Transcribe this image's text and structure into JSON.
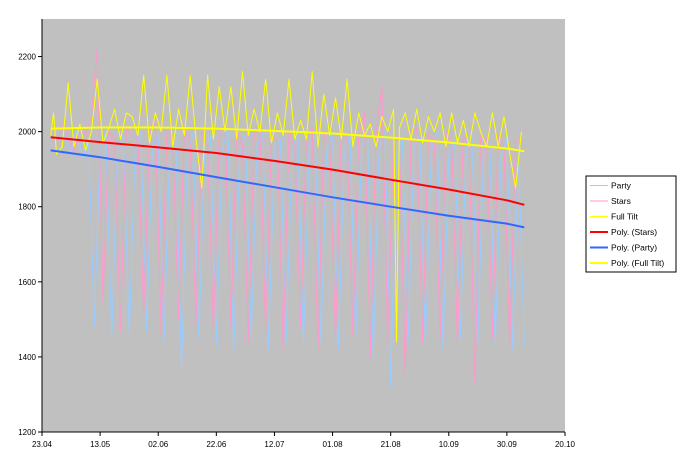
{
  "chart_data": {
    "type": "line",
    "title": "",
    "xlabel": "",
    "ylabel": "",
    "ylim": [
      1200,
      2300
    ],
    "yticks": [
      1200,
      1400,
      1600,
      1800,
      2000,
      2200
    ],
    "xlim": [
      "2006-04-23",
      "2006-10-20"
    ],
    "xtick_labels": [
      "23.04",
      "13.05",
      "02.06",
      "22.06",
      "12.07",
      "01.08",
      "21.08",
      "10.09",
      "30.09",
      "20.10"
    ],
    "plot_background": "#c0c0c0",
    "grid": false,
    "legend_position": "right",
    "series": [
      {
        "name": "Party",
        "color": "#99ccff",
        "width": 1,
        "dates": [
          "2006-04-29",
          "2006-05-01",
          "2006-05-03",
          "2006-05-05",
          "2006-05-07",
          "2006-05-09",
          "2006-05-11",
          "2006-05-13",
          "2006-05-15",
          "2006-05-17",
          "2006-05-19",
          "2006-05-21",
          "2006-05-23",
          "2006-05-25",
          "2006-05-27",
          "2006-05-29",
          "2006-05-31",
          "2006-06-02",
          "2006-06-04",
          "2006-06-06",
          "2006-06-08",
          "2006-06-10",
          "2006-06-12",
          "2006-06-14",
          "2006-06-16",
          "2006-06-18",
          "2006-06-20",
          "2006-06-22",
          "2006-06-24",
          "2006-06-26",
          "2006-06-28",
          "2006-06-30",
          "2006-07-02",
          "2006-07-04",
          "2006-07-06",
          "2006-07-08",
          "2006-07-10",
          "2006-07-12",
          "2006-07-14",
          "2006-07-16",
          "2006-07-18",
          "2006-07-20",
          "2006-07-22",
          "2006-07-24",
          "2006-07-26",
          "2006-07-28",
          "2006-07-30",
          "2006-08-01",
          "2006-08-03",
          "2006-08-05",
          "2006-08-07",
          "2006-08-09",
          "2006-08-11",
          "2006-08-13",
          "2006-08-15",
          "2006-08-17",
          "2006-08-19",
          "2006-08-21",
          "2006-08-23",
          "2006-08-25",
          "2006-08-27",
          "2006-08-29",
          "2006-08-31",
          "2006-09-02",
          "2006-09-04",
          "2006-09-06",
          "2006-09-08",
          "2006-09-10",
          "2006-09-12",
          "2006-09-14",
          "2006-09-16",
          "2006-09-18",
          "2006-09-20",
          "2006-09-22",
          "2006-09-24",
          "2006-09-26",
          "2006-09-28",
          "2006-09-30",
          "2006-10-02",
          "2006-10-04",
          "2006-10-06"
        ],
        "values": [
          1950,
          1990,
          1940,
          2010,
          1930,
          1980,
          1480,
          1960,
          2000,
          1450,
          1950,
          1990,
          1460,
          1940,
          2000,
          1470,
          1960,
          1990,
          1440,
          1950,
          2010,
          1360,
          1940,
          2000,
          1450,
          1960,
          1990,
          1430,
          1950,
          2010,
          1410,
          1940,
          1990,
          1450,
          1960,
          2000,
          1420,
          1950,
          1980,
          1440,
          1940,
          2000,
          1430,
          1960,
          1990,
          1440,
          1950,
          2000,
          1420,
          1940,
          1990,
          1450,
          1960,
          2010,
          1400,
          1950,
          2000,
          1320,
          1940,
          1980,
          1440,
          1960,
          1990,
          1430,
          1950,
          2000,
          1420,
          1940,
          1980,
          1450,
          1960,
          1990,
          1440,
          1950,
          2000,
          1430,
          1940,
          1980,
          1420,
          1950,
          1430
        ]
      },
      {
        "name": "Stars",
        "color": "#ff99cc",
        "width": 1,
        "dates": [
          "2006-04-28",
          "2006-04-30",
          "2006-05-02",
          "2006-05-04",
          "2006-05-06",
          "2006-05-08",
          "2006-05-10",
          "2006-05-12",
          "2006-05-14",
          "2006-05-16",
          "2006-05-18",
          "2006-05-20",
          "2006-05-22",
          "2006-05-24",
          "2006-05-26",
          "2006-05-28",
          "2006-05-30",
          "2006-06-01",
          "2006-06-03",
          "2006-06-05",
          "2006-06-07",
          "2006-06-09",
          "2006-06-11",
          "2006-06-13",
          "2006-06-15",
          "2006-06-17",
          "2006-06-19",
          "2006-06-21",
          "2006-06-23",
          "2006-06-25",
          "2006-06-27",
          "2006-06-29",
          "2006-07-01",
          "2006-07-03",
          "2006-07-05",
          "2006-07-07",
          "2006-07-09",
          "2006-07-11",
          "2006-07-13",
          "2006-07-15",
          "2006-07-17",
          "2006-07-19",
          "2006-07-21",
          "2006-07-23",
          "2006-07-25",
          "2006-07-27",
          "2006-07-29",
          "2006-07-31",
          "2006-08-02",
          "2006-08-04",
          "2006-08-06",
          "2006-08-08",
          "2006-08-10",
          "2006-08-12",
          "2006-08-14",
          "2006-08-16",
          "2006-08-18",
          "2006-08-20",
          "2006-08-22",
          "2006-08-24",
          "2006-08-26",
          "2006-08-28",
          "2006-08-30",
          "2006-09-01",
          "2006-09-03",
          "2006-09-05",
          "2006-09-07",
          "2006-09-09",
          "2006-09-11",
          "2006-09-13",
          "2006-09-15",
          "2006-09-17",
          "2006-09-19",
          "2006-09-21",
          "2006-09-23",
          "2006-09-25",
          "2006-09-27",
          "2006-09-29",
          "2006-10-01",
          "2006-10-03",
          "2006-10-05"
        ],
        "values": [
          1960,
          2020,
          1980,
          1950,
          2000,
          1990,
          2040,
          2220,
          1550,
          2000,
          1980,
          1470,
          2010,
          1990,
          1980,
          1520,
          1990,
          2030,
          1460,
          2000,
          1980,
          1500,
          2010,
          1970,
          1490,
          2000,
          1960,
          1470,
          1990,
          2020,
          1480,
          2000,
          1970,
          1440,
          1990,
          2010,
          1470,
          1990,
          1980,
          1420,
          2000,
          1960,
          1480,
          1990,
          2010,
          1420,
          1990,
          1970,
          1450,
          2000,
          1980,
          1460,
          1990,
          2050,
          1400,
          2000,
          2120,
          1440,
          1990,
          1970,
          1350,
          1990,
          2010,
          1440,
          1990,
          1980,
          1450,
          2000,
          1970,
          1430,
          1990,
          1960,
          1330,
          1990,
          1980,
          1450,
          1990,
          1960,
          1430,
          1980,
          1960
        ]
      },
      {
        "name": "Full Tilt",
        "color": "#ffff00",
        "width": 1,
        "dates": [
          "2006-04-26",
          "2006-04-27",
          "2006-04-28",
          "2006-04-30",
          "2006-05-02",
          "2006-05-04",
          "2006-05-06",
          "2006-05-08",
          "2006-05-10",
          "2006-05-12",
          "2006-05-14",
          "2006-05-16",
          "2006-05-18",
          "2006-05-20",
          "2006-05-22",
          "2006-05-24",
          "2006-05-26",
          "2006-05-28",
          "2006-05-30",
          "2006-06-01",
          "2006-06-03",
          "2006-06-05",
          "2006-06-07",
          "2006-06-09",
          "2006-06-11",
          "2006-06-13",
          "2006-06-15",
          "2006-06-17",
          "2006-06-19",
          "2006-06-21",
          "2006-06-23",
          "2006-06-25",
          "2006-06-27",
          "2006-06-29",
          "2006-07-01",
          "2006-07-03",
          "2006-07-05",
          "2006-07-07",
          "2006-07-09",
          "2006-07-11",
          "2006-07-13",
          "2006-07-15",
          "2006-07-17",
          "2006-07-19",
          "2006-07-21",
          "2006-07-23",
          "2006-07-25",
          "2006-07-27",
          "2006-07-29",
          "2006-07-31",
          "2006-08-02",
          "2006-08-04",
          "2006-08-06",
          "2006-08-08",
          "2006-08-10",
          "2006-08-12",
          "2006-08-14",
          "2006-08-16",
          "2006-08-18",
          "2006-08-20",
          "2006-08-22",
          "2006-08-23",
          "2006-08-24",
          "2006-08-26",
          "2006-08-28",
          "2006-08-30",
          "2006-09-01",
          "2006-09-03",
          "2006-09-05",
          "2006-09-07",
          "2006-09-09",
          "2006-09-11",
          "2006-09-13",
          "2006-09-15",
          "2006-09-17",
          "2006-09-19",
          "2006-09-21",
          "2006-09-23",
          "2006-09-25",
          "2006-09-27",
          "2006-09-29",
          "2006-10-01",
          "2006-10-03",
          "2006-10-05"
        ],
        "values": [
          1990,
          2050,
          1940,
          1960,
          2130,
          1960,
          2020,
          1950,
          2000,
          2140,
          1970,
          2010,
          2060,
          1980,
          2050,
          2040,
          1990,
          2150,
          1970,
          2050,
          2000,
          2150,
          1960,
          2060,
          1990,
          2150,
          1980,
          1850,
          2150,
          1980,
          2120,
          2000,
          2120,
          1980,
          2160,
          1990,
          2060,
          2000,
          2140,
          1970,
          2050,
          1990,
          2140,
          1980,
          2030,
          1980,
          2160,
          1960,
          2100,
          1990,
          2090,
          1980,
          2140,
          1960,
          2050,
          1990,
          2020,
          1960,
          2040,
          2000,
          2060,
          1440,
          2010,
          2050,
          1980,
          2060,
          1970,
          2040,
          2000,
          2050,
          1960,
          2050,
          1970,
          2030,
          1960,
          2050,
          2000,
          1960,
          2050,
          1960,
          2040,
          1940,
          1850,
          2000
        ]
      },
      {
        "name": "Poly. (Stars)",
        "color": "#ff0000",
        "width": 2,
        "dates": [
          "2006-04-26",
          "2006-05-13",
          "2006-06-02",
          "2006-06-22",
          "2006-07-12",
          "2006-08-01",
          "2006-08-21",
          "2006-09-10",
          "2006-09-30",
          "2006-10-06"
        ],
        "values": [
          1985,
          1972,
          1958,
          1943,
          1922,
          1899,
          1872,
          1846,
          1817,
          1805
        ]
      },
      {
        "name": "Poly. (Party)",
        "color": "#3366ff",
        "width": 2,
        "dates": [
          "2006-04-26",
          "2006-05-13",
          "2006-06-02",
          "2006-06-22",
          "2006-07-12",
          "2006-08-01",
          "2006-08-21",
          "2006-09-10",
          "2006-09-30",
          "2006-10-06"
        ],
        "values": [
          1950,
          1932,
          1906,
          1879,
          1852,
          1825,
          1800,
          1776,
          1755,
          1745
        ]
      },
      {
        "name": "Poly. (Full Tilt)",
        "color": "#ffff00",
        "width": 2,
        "dates": [
          "2006-04-26",
          "2006-05-13",
          "2006-06-02",
          "2006-06-22",
          "2006-07-12",
          "2006-08-01",
          "2006-08-21",
          "2006-09-10",
          "2006-09-30",
          "2006-10-06"
        ],
        "values": [
          2008,
          2011,
          2011,
          2008,
          2002,
          1995,
          1984,
          1971,
          1955,
          1948
        ]
      }
    ]
  }
}
